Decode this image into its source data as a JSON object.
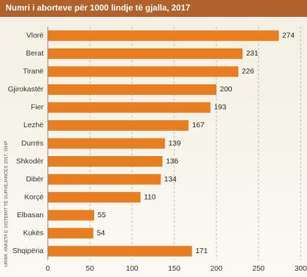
{
  "chart_data": {
    "type": "bar",
    "orientation": "horizontal",
    "title": "Numri i aborteve për 1000 lindje të gjalla, 2017",
    "source": "URIMI: ANKETA E SISTEMIT TË SURVEJANCËS 2017, ISHP",
    "categories": [
      "Vlorë",
      "Berat",
      "Tiranë",
      "Gjirokastër",
      "Fier",
      "Lezhë",
      "Durrës",
      "Shkodër",
      "Dibër",
      "Korçë",
      "Elbasan",
      "Kukës",
      "Shqipëria"
    ],
    "values": [
      274,
      231,
      226,
      200,
      193,
      167,
      139,
      136,
      134,
      110,
      55,
      54,
      171
    ],
    "color": "#e87e22",
    "xlim": [
      0,
      300
    ],
    "xticks": [
      0,
      50,
      100,
      150,
      200,
      250,
      300
    ],
    "grid": true
  }
}
